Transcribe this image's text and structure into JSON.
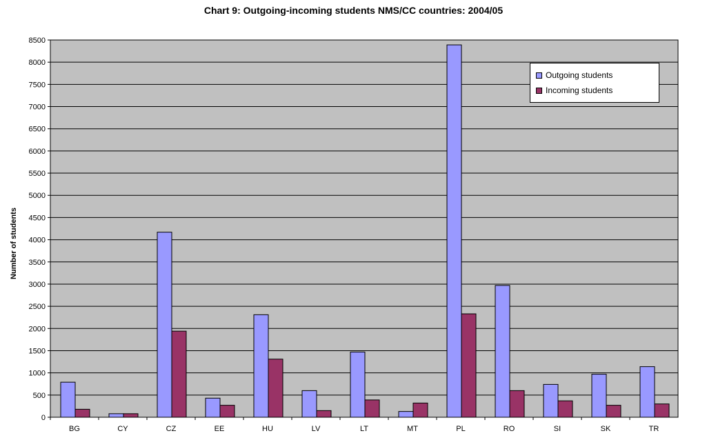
{
  "chart_data": {
    "type": "bar",
    "title": "Chart 9: Outgoing-incoming students NMS/CC countries: 2004/05",
    "xlabel": "",
    "ylabel": "Number of students",
    "ylim": [
      0,
      8500
    ],
    "ytick_step": 500,
    "grid": true,
    "legend_position": "top-right",
    "categories": [
      "BG",
      "CY",
      "CZ",
      "EE",
      "HU",
      "LV",
      "LT",
      "MT",
      "PL",
      "RO",
      "SI",
      "SK",
      "TR"
    ],
    "series": [
      {
        "name": "Outgoing students",
        "color": "#9999ff",
        "values": [
          790,
          80,
          4170,
          430,
          2310,
          600,
          1470,
          130,
          8390,
          2970,
          740,
          970,
          1140
        ]
      },
      {
        "name": "Incoming students",
        "color": "#993366",
        "values": [
          180,
          80,
          1940,
          270,
          1310,
          150,
          390,
          320,
          2330,
          600,
          370,
          270,
          300
        ]
      }
    ],
    "plot_background": "#c0c0c0"
  }
}
